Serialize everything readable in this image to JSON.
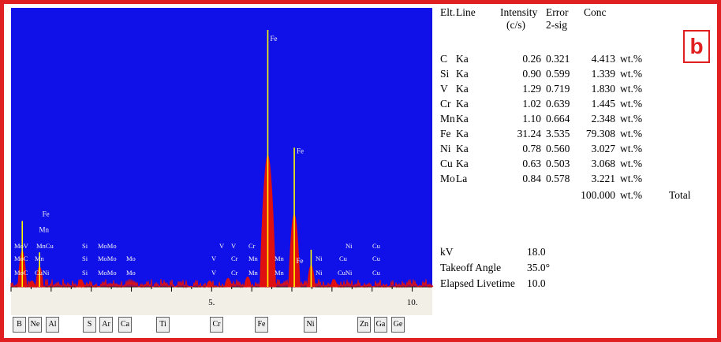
{
  "panel_label": "b",
  "colors": {
    "frame": "#e02020",
    "plot_bg": "#1010e8",
    "spectrum": "#e01010",
    "peak_highlight": "#ffff00",
    "axis_bg": "#f2f0e6",
    "label_color": "#f5f5f5"
  },
  "chart_data": {
    "type": "line",
    "xlabel": "",
    "ylabel": "",
    "xlim": [
      0,
      10.5
    ],
    "x_ticks": [
      {
        "value": 5,
        "label": "5."
      },
      {
        "value": 10,
        "label": "10."
      }
    ],
    "series": [
      {
        "peaks": [
          {
            "x": 0.28,
            "height": 0.27
          },
          {
            "x": 0.52,
            "height": 0.04
          },
          {
            "x": 0.71,
            "height": 0.15
          },
          {
            "x": 1.74,
            "height": 0.05
          },
          {
            "x": 4.95,
            "height": 0.04
          },
          {
            "x": 5.41,
            "height": 0.06
          },
          {
            "x": 5.9,
            "height": 0.07
          },
          {
            "x": 6.4,
            "height": 1.0
          },
          {
            "x": 7.06,
            "height": 0.55
          },
          {
            "x": 7.48,
            "height": 0.16
          },
          {
            "x": 8.05,
            "height": 0.05
          }
        ]
      }
    ],
    "peak_labels": [
      {
        "text": "Fe",
        "x": 6.4,
        "y": 0.97
      },
      {
        "text": "Fe",
        "x": 7.06,
        "y": 0.54
      },
      {
        "text": "Fe",
        "x": 0.72,
        "y": 0.3
      },
      {
        "text": "Mn",
        "x": 0.64,
        "y": 0.24
      },
      {
        "text": "Fe",
        "x": 7.05,
        "y": 0.12
      }
    ],
    "line_markers": {
      "row1": [
        "MoV",
        "MnCu",
        "Si",
        "MoMo",
        "V",
        "V",
        "Cr",
        "Ni",
        "Cu"
      ],
      "row2": [
        "MoC",
        "Mn",
        "Si",
        "MoMo",
        "Mo",
        "V",
        "Cr",
        "Mn",
        "Mn",
        "Ni",
        "Cu",
        "Cu"
      ],
      "row3": [
        "MoC",
        "CuNi",
        "Si",
        "MoMo",
        "Mo",
        "V",
        "Cr",
        "Mn",
        "Mn",
        "Ni",
        "CuNi",
        "Cu"
      ]
    },
    "element_buttons": [
      "B",
      "Ne",
      "Al",
      "S",
      "Ar",
      "Ca",
      "Ti",
      "Cr",
      "Fe",
      "Ni",
      "Zn",
      "Ga",
      "Ge"
    ]
  },
  "results": {
    "headers": {
      "element": "Elt.",
      "line": "Line",
      "intensity": "Intensity",
      "intensity_unit": "(c/s)",
      "error": "Error",
      "error_sub": "2-sig",
      "conc": "Conc"
    },
    "rows": [
      {
        "element": "C",
        "line": "Ka",
        "intensity": "0.26",
        "error": "0.321",
        "conc": "4.413",
        "unit": "wt.%"
      },
      {
        "element": "Si",
        "line": "Ka",
        "intensity": "0.90",
        "error": "0.599",
        "conc": "1.339",
        "unit": "wt.%"
      },
      {
        "element": "V",
        "line": "Ka",
        "intensity": "1.29",
        "error": "0.719",
        "conc": "1.830",
        "unit": "wt.%"
      },
      {
        "element": "Cr",
        "line": "Ka",
        "intensity": "1.02",
        "error": "0.639",
        "conc": "1.445",
        "unit": "wt.%"
      },
      {
        "element": "Mn",
        "line": "Ka",
        "intensity": "1.10",
        "error": "0.664",
        "conc": "2.348",
        "unit": "wt.%"
      },
      {
        "element": "Fe",
        "line": "Ka",
        "intensity": "31.24",
        "error": "3.535",
        "conc": "79.308",
        "unit": "wt.%"
      },
      {
        "element": "Ni",
        "line": "Ka",
        "intensity": "0.78",
        "error": "0.560",
        "conc": "3.027",
        "unit": "wt.%"
      },
      {
        "element": "Cu",
        "line": "Ka",
        "intensity": "0.63",
        "error": "0.503",
        "conc": "3.068",
        "unit": "wt.%"
      },
      {
        "element": "Mo",
        "line": "La",
        "intensity": "0.84",
        "error": "0.578",
        "conc": "3.221",
        "unit": "wt.%"
      }
    ],
    "total": {
      "conc": "100.000",
      "unit": "wt.%",
      "label": "Total"
    }
  },
  "settings": [
    {
      "label": "kV",
      "value": "18.0"
    },
    {
      "label": "Takeoff Angle",
      "value": "35.0°"
    },
    {
      "label": "Elapsed Livetime",
      "value": "10.0"
    }
  ]
}
